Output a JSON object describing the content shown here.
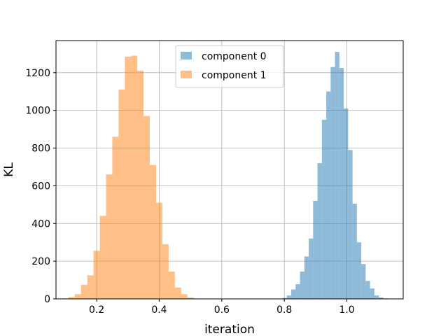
{
  "chart_data": {
    "type": "histogram",
    "title": "",
    "xlabel": "iteration",
    "ylabel": "KL",
    "xlim": [
      0.07,
      1.18
    ],
    "ylim": [
      0,
      1370
    ],
    "xticks": [
      0.2,
      0.4,
      0.6,
      0.8,
      1.0
    ],
    "xtick_labels": [
      "0.2",
      "0.4",
      "0.6",
      "0.8",
      "1.0"
    ],
    "yticks": [
      0,
      200,
      400,
      600,
      800,
      1000,
      1200
    ],
    "ytick_labels": [
      "0",
      "200",
      "400",
      "600",
      "800",
      "1000",
      "1200"
    ],
    "grid": true,
    "legend_position": "upper center",
    "series": [
      {
        "name": "component 0",
        "color": "#1f77b4",
        "alpha": 0.5,
        "bins": [
          [
            0.794,
            0.808,
            5
          ],
          [
            0.808,
            0.822,
            18
          ],
          [
            0.822,
            0.836,
            50
          ],
          [
            0.836,
            0.85,
            78
          ],
          [
            0.85,
            0.864,
            145
          ],
          [
            0.864,
            0.878,
            225
          ],
          [
            0.878,
            0.892,
            320
          ],
          [
            0.892,
            0.906,
            520
          ],
          [
            0.906,
            0.92,
            720
          ],
          [
            0.92,
            0.934,
            950
          ],
          [
            0.934,
            0.948,
            1100
          ],
          [
            0.948,
            0.962,
            1230
          ],
          [
            0.962,
            0.976,
            1310
          ],
          [
            0.976,
            0.99,
            1225
          ],
          [
            0.99,
            1.004,
            1010
          ],
          [
            1.004,
            1.018,
            790
          ],
          [
            1.018,
            1.032,
            505
          ],
          [
            1.032,
            1.046,
            300
          ],
          [
            1.046,
            1.06,
            185
          ],
          [
            1.06,
            1.074,
            95
          ],
          [
            1.074,
            1.088,
            55
          ],
          [
            1.088,
            1.102,
            18
          ],
          [
            1.102,
            1.116,
            8
          ],
          [
            1.116,
            1.13,
            3
          ]
        ]
      },
      {
        "name": "component 1",
        "color": "#ff7f0e",
        "alpha": 0.5,
        "bins": [
          [
            0.09,
            0.11,
            3
          ],
          [
            0.11,
            0.13,
            10
          ],
          [
            0.13,
            0.15,
            25
          ],
          [
            0.15,
            0.17,
            75
          ],
          [
            0.17,
            0.19,
            125
          ],
          [
            0.19,
            0.21,
            255
          ],
          [
            0.21,
            0.23,
            440
          ],
          [
            0.23,
            0.25,
            660
          ],
          [
            0.25,
            0.27,
            860
          ],
          [
            0.27,
            0.29,
            1110
          ],
          [
            0.29,
            0.31,
            1285
          ],
          [
            0.31,
            0.33,
            1290
          ],
          [
            0.33,
            0.35,
            1210
          ],
          [
            0.35,
            0.37,
            970
          ],
          [
            0.37,
            0.39,
            710
          ],
          [
            0.39,
            0.41,
            510
          ],
          [
            0.41,
            0.43,
            290
          ],
          [
            0.43,
            0.45,
            145
          ],
          [
            0.45,
            0.47,
            60
          ],
          [
            0.47,
            0.49,
            25
          ],
          [
            0.49,
            0.51,
            8
          ]
        ]
      }
    ]
  }
}
